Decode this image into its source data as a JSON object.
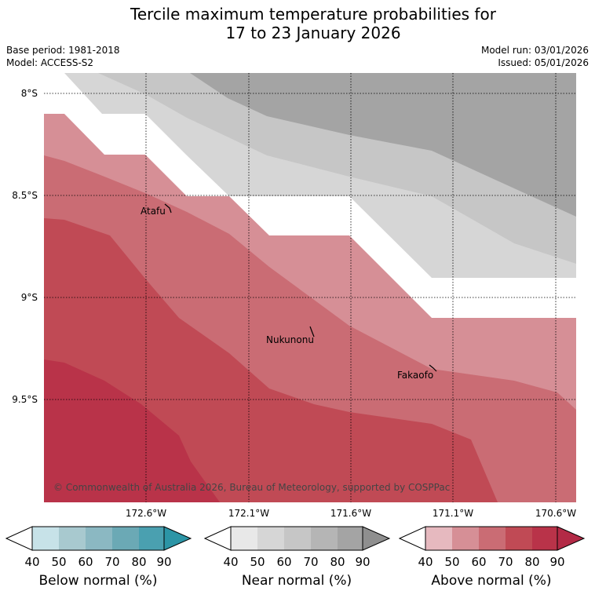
{
  "title_line1": "Tercile maximum temperature probabilities for",
  "title_line2": "17 to 23 January 2026",
  "meta": {
    "base_period": "Base period: 1981-2018",
    "model": "Model: ACCESS-S2",
    "model_run": "Model run: 03/01/2026",
    "issued": "Issued: 05/01/2026"
  },
  "lat_labels": [
    "8°S",
    "8.5°S",
    "9°S",
    "9.5°S"
  ],
  "lon_labels": [
    "172.6°W",
    "172.1°W",
    "171.6°W",
    "171.1°W",
    "170.6°W"
  ],
  "places": [
    "Atafu",
    "Nukunonu",
    "Fakaofo"
  ],
  "copyright": "© Commonwealth of Australia 2026, Bureau of Meteorology, supported by COSPPac",
  "colorbars": [
    {
      "title": "Below normal (%)",
      "ticks": [
        "40",
        "50",
        "60",
        "70",
        "80",
        "90"
      ],
      "colors": [
        "#ffffff",
        "#c7e2e8",
        "#a8c9cf",
        "#8bb8c2",
        "#6ba9b5",
        "#4aa0b0",
        "#2c95a6"
      ]
    },
    {
      "title": "Near normal (%)",
      "ticks": [
        "40",
        "50",
        "60",
        "70",
        "80",
        "90"
      ],
      "colors": [
        "#ffffff",
        "#e8e8e8",
        "#d6d6d6",
        "#c6c6c6",
        "#b5b5b5",
        "#a4a4a4",
        "#8f8f8f"
      ]
    },
    {
      "title": "Above normal (%)",
      "ticks": [
        "40",
        "50",
        "60",
        "70",
        "80",
        "90"
      ],
      "colors": [
        "#ffffff",
        "#e6b9bf",
        "#d68f96",
        "#ca6c74",
        "#c04a55",
        "#b93349",
        "#b32a46"
      ]
    }
  ]
}
